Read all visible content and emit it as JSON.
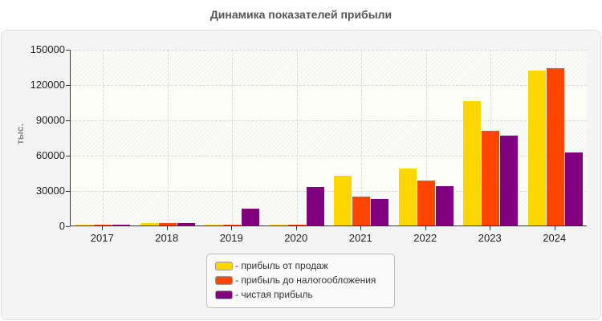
{
  "chart_data": {
    "type": "bar",
    "title": "Динамика показателей прибыли",
    "xlabel": "",
    "ylabel": "тыс.",
    "ylim": [
      0,
      150000
    ],
    "yticks": [
      0,
      30000,
      60000,
      90000,
      120000,
      150000
    ],
    "grid": true,
    "legend_position": "bottom",
    "categories": [
      "2017",
      "2018",
      "2019",
      "2020",
      "2021",
      "2022",
      "2023",
      "2024"
    ],
    "series": [
      {
        "name": "прибыль от продаж",
        "color": "#FFD700",
        "values": [
          900,
          2000,
          900,
          900,
          42000,
          48200,
          105900,
          131800
        ]
      },
      {
        "name": "прибыль до налогообложения",
        "color": "#FF4500",
        "values": [
          900,
          2000,
          900,
          900,
          24700,
          38000,
          80700,
          133900
        ]
      },
      {
        "name": "чистая прибыль",
        "color": "#800080",
        "values": [
          900,
          2000,
          14500,
          33000,
          22600,
          33600,
          76600,
          62300
        ]
      }
    ]
  },
  "legend": {
    "items": [
      {
        "label": "- прибыль от продаж",
        "color": "#FFD700"
      },
      {
        "label": "- прибыль до налогообложения",
        "color": "#FF4500"
      },
      {
        "label": "- чистая прибыль",
        "color": "#800080"
      }
    ]
  }
}
